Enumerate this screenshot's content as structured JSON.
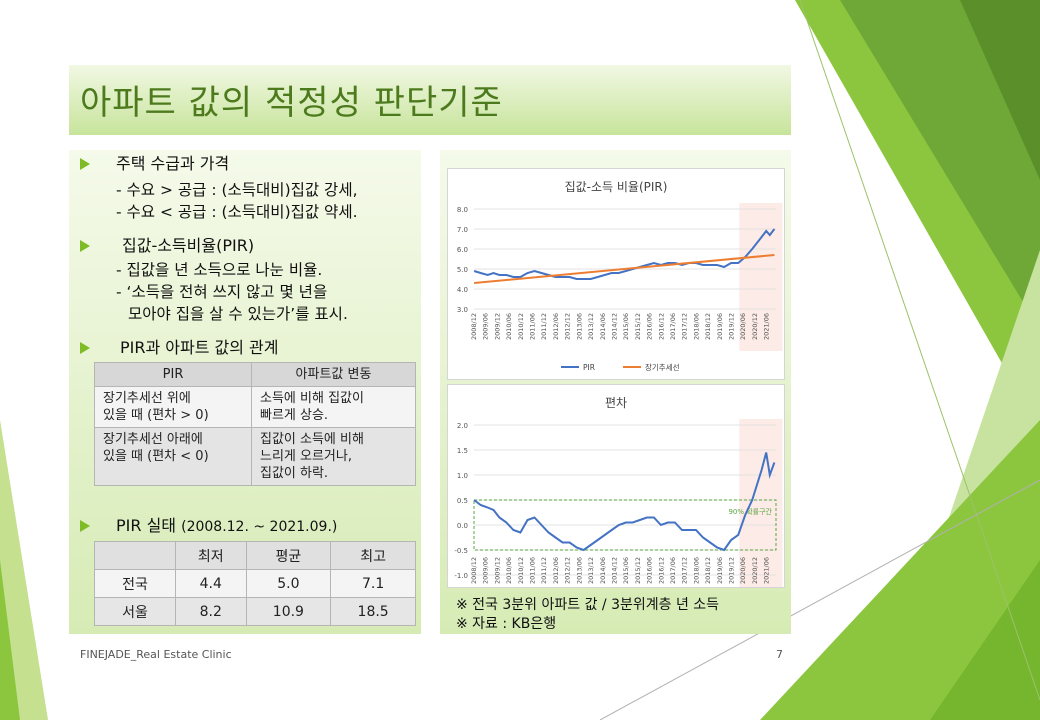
{
  "title": "아파트 값의 적정성 판단기준",
  "left": {
    "bullet1": {
      "heading": "주택 수급과 가격",
      "lines": [
        "- 수요 > 공급 : (소득대비)집값 강세,",
        "- 수요 < 공급 : (소득대비)집값 약세."
      ]
    },
    "bullet2": {
      "heading": "집값-소득비율(PIR)",
      "lines": [
        "- 집값을 년 소득으로 나눈 비율.",
        "- ‘소득을 전혀 쓰지 않고 몇 년을",
        "모아야 집을 살 수 있는가’를 표시."
      ]
    },
    "bullet3": {
      "heading": "PIR과 아파트 값의 관계"
    },
    "relation_table": {
      "headers": [
        "PIR",
        "아파트값 변동"
      ],
      "rows": [
        {
          "pir": [
            "장기추세선 위에",
            "있을 때 (편차 > 0)"
          ],
          "change": [
            "소득에 비해 집값이",
            "빠르게 상승."
          ]
        },
        {
          "pir": [
            "장기추세선 아래에",
            "있을 때 (편차 < 0)"
          ],
          "change": [
            "집값이 소득에 비해",
            "느리게 오르거나,",
            "집값이 하락."
          ]
        }
      ]
    },
    "bullet4": {
      "heading": "PIR 실태",
      "period": "(2008.12. ~ 2021.09.)"
    },
    "stats_table": {
      "headers": [
        "",
        "최저",
        "평균",
        "최고"
      ],
      "rows": [
        [
          "전국",
          "4.4",
          "5.0",
          "7.1"
        ],
        [
          "서울",
          "8.2",
          "10.9",
          "18.5"
        ]
      ]
    }
  },
  "notes": [
    "※ 전국 3분위 아파트 값 / 3분위계층 년 소득",
    "※ 자료 : KB은행"
  ],
  "footer": {
    "left": "FINEJADE_Real Estate Clinic",
    "page": "7"
  },
  "colors": {
    "accent": "#7fba27",
    "pir_line": "#4472c4",
    "trend_line": "#ed7d31",
    "band": "#5aa642"
  },
  "chart_data": [
    {
      "type": "line",
      "title": "집값-소득 비율(PIR)",
      "ylim": [
        3.0,
        8.0
      ],
      "yticks": [
        "3.0",
        "4.0",
        "5.0",
        "6.0",
        "7.0",
        "8.0"
      ],
      "x_tick_labels": [
        "2008/12",
        "2009/06",
        "2009/12",
        "2010/06",
        "2010/12",
        "2011/06",
        "2011/12",
        "2012/06",
        "2012/12",
        "2013/06",
        "2013/12",
        "2014/06",
        "2014/12",
        "2015/06",
        "2015/12",
        "2016/06",
        "2016/12",
        "2017/06",
        "2017/12",
        "2018/06",
        "2018/12",
        "2019/06",
        "2019/12",
        "2020/06",
        "2020/12",
        "2021/06"
      ],
      "highlight_range": [
        2020.25,
        2021.75
      ],
      "series": [
        {
          "name": "PIR",
          "x": [
            2008.92,
            2009.2,
            2009.5,
            2009.75,
            2010.0,
            2010.3,
            2010.6,
            2010.9,
            2011.2,
            2011.5,
            2011.8,
            2012.1,
            2012.4,
            2012.7,
            2013.0,
            2013.3,
            2013.6,
            2013.9,
            2014.2,
            2014.5,
            2014.8,
            2015.1,
            2015.4,
            2015.7,
            2016.0,
            2016.3,
            2016.6,
            2016.9,
            2017.2,
            2017.5,
            2017.8,
            2018.1,
            2018.4,
            2018.7,
            2019.0,
            2019.3,
            2019.6,
            2019.9,
            2020.2,
            2020.5,
            2020.8,
            2021.0,
            2021.2,
            2021.4,
            2021.55,
            2021.75
          ],
          "y": [
            4.9,
            4.8,
            4.7,
            4.8,
            4.7,
            4.7,
            4.6,
            4.6,
            4.8,
            4.9,
            4.8,
            4.7,
            4.6,
            4.6,
            4.6,
            4.5,
            4.5,
            4.5,
            4.6,
            4.7,
            4.8,
            4.8,
            4.9,
            5.0,
            5.1,
            5.2,
            5.3,
            5.2,
            5.3,
            5.3,
            5.2,
            5.3,
            5.3,
            5.2,
            5.2,
            5.2,
            5.1,
            5.3,
            5.3,
            5.6,
            6.0,
            6.3,
            6.6,
            6.9,
            6.7,
            7.0
          ]
        },
        {
          "name": "장기추세선",
          "x": [
            2008.92,
            2021.75
          ],
          "y": [
            4.3,
            5.7
          ]
        }
      ]
    },
    {
      "type": "line",
      "title": "편차",
      "ylim": [
        -1.0,
        2.0
      ],
      "yticks": [
        "-1.0",
        "-0.5",
        "0.0",
        "0.5",
        "1.0",
        "1.5",
        "2.0"
      ],
      "x_tick_labels": [
        "2008/12",
        "2009/06",
        "2009/12",
        "2010/06",
        "2010/12",
        "2011/06",
        "2011/12",
        "2012/06",
        "2012/12",
        "2013/06",
        "2013/12",
        "2014/06",
        "2014/12",
        "2015/06",
        "2015/12",
        "2016/06",
        "2016/12",
        "2017/06",
        "2017/12",
        "2018/06",
        "2018/12",
        "2019/06",
        "2019/12",
        "2020/06",
        "2020/12",
        "2021/06"
      ],
      "band": {
        "range": [
          -0.5,
          0.5
        ],
        "label": "90% 확률구간"
      },
      "highlight_range": [
        2020.25,
        2021.75
      ],
      "series": [
        {
          "name": "편차",
          "x": [
            2008.92,
            2009.2,
            2009.5,
            2009.75,
            2010.0,
            2010.3,
            2010.6,
            2010.9,
            2011.2,
            2011.5,
            2011.8,
            2012.1,
            2012.4,
            2012.7,
            2013.0,
            2013.3,
            2013.6,
            2013.9,
            2014.2,
            2014.5,
            2014.8,
            2015.1,
            2015.4,
            2015.7,
            2016.0,
            2016.3,
            2016.6,
            2016.9,
            2017.2,
            2017.5,
            2017.8,
            2018.1,
            2018.4,
            2018.7,
            2019.0,
            2019.3,
            2019.6,
            2019.9,
            2020.2,
            2020.5,
            2020.8,
            2021.0,
            2021.2,
            2021.4,
            2021.55,
            2021.75
          ],
          "y": [
            0.5,
            0.4,
            0.35,
            0.3,
            0.15,
            0.05,
            -0.1,
            -0.15,
            0.1,
            0.15,
            0.0,
            -0.15,
            -0.25,
            -0.35,
            -0.35,
            -0.45,
            -0.5,
            -0.4,
            -0.3,
            -0.2,
            -0.1,
            0.0,
            0.05,
            0.05,
            0.1,
            0.15,
            0.15,
            0.0,
            0.05,
            0.05,
            -0.1,
            -0.1,
            -0.1,
            -0.25,
            -0.35,
            -0.45,
            -0.5,
            -0.3,
            -0.2,
            0.2,
            0.5,
            0.8,
            1.1,
            1.45,
            1.0,
            1.25
          ]
        }
      ]
    }
  ]
}
